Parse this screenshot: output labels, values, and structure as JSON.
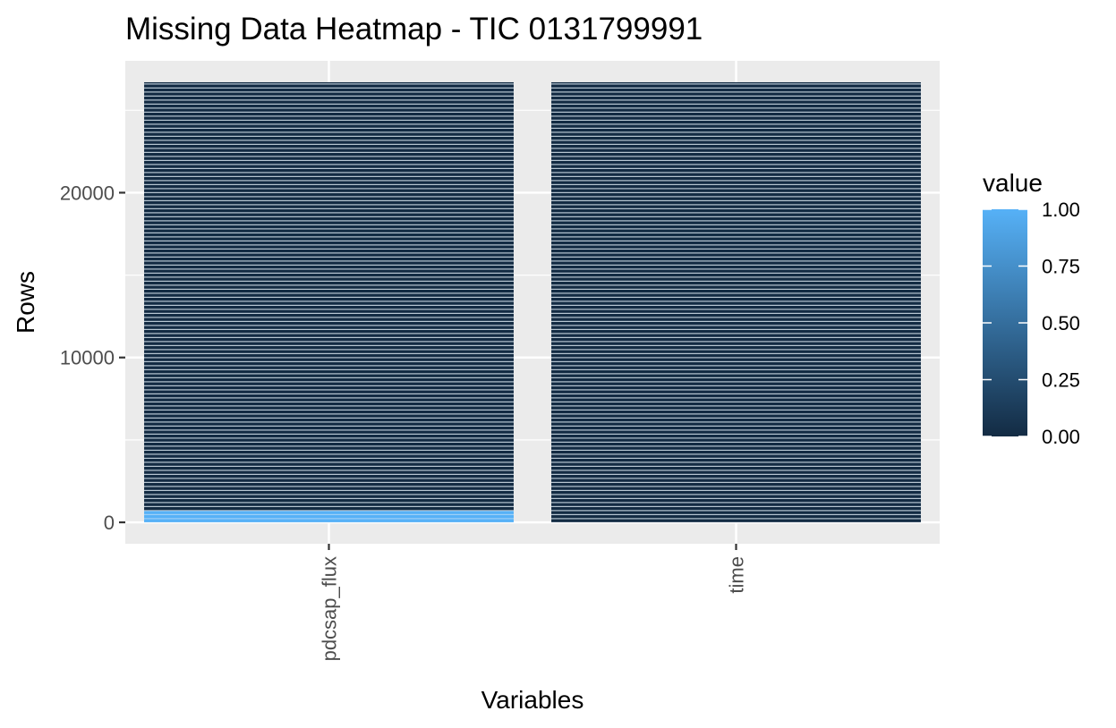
{
  "chart_data": {
    "type": "heatmap",
    "title": "Missing Data Heatmap - TIC 0131799991",
    "xlabel": "Variables",
    "ylabel": "Rows",
    "categories": [
      "pdcsap_flux",
      "time"
    ],
    "ylim": [
      -1300,
      28000
    ],
    "y_ticks": [
      0,
      10000,
      20000
    ],
    "y_tick_labels": [
      "0",
      "10000",
      "20000"
    ],
    "row_count": 26700,
    "series": [
      {
        "category": "pdcsap_flux",
        "segments": [
          {
            "from": 0,
            "to": 700,
            "value": 1
          },
          {
            "from": 700,
            "to": 26700,
            "value": 0
          }
        ]
      },
      {
        "category": "time",
        "segments": [
          {
            "from": 0,
            "to": 26700,
            "value": 0
          }
        ]
      }
    ],
    "legend": {
      "title": "value",
      "position": "right",
      "ticks": [
        0,
        0.25,
        0.5,
        0.75,
        1
      ],
      "tick_labels": [
        "0.00",
        "0.25",
        "0.50",
        "0.75",
        "1.00"
      ],
      "low_color": "#132B43",
      "high_color": "#56B1F7"
    },
    "grid": true,
    "panel_background": "#EBEBEB",
    "gridline_color": "#FFFFFF",
    "tile_line_color": "#B8C7D3"
  }
}
